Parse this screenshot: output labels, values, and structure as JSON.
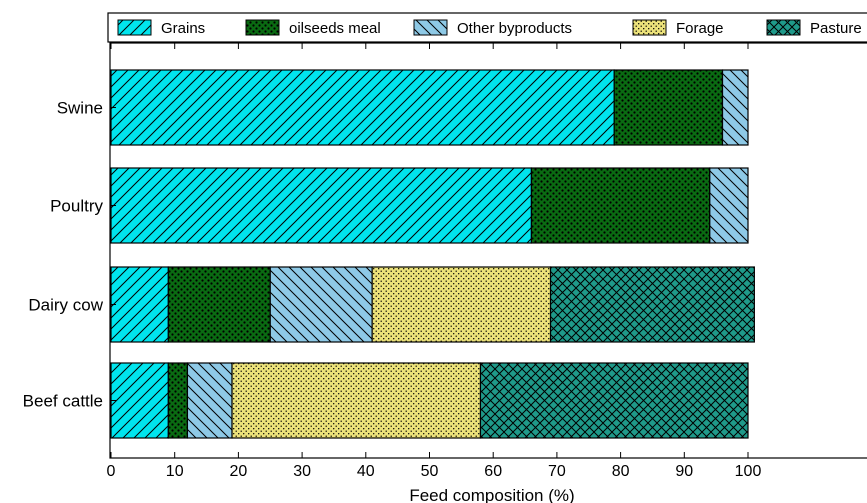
{
  "chart_data": {
    "type": "bar",
    "orientation": "horizontal",
    "stacked": true,
    "categories": [
      "Swine",
      "Poultry",
      "Dairy cow",
      "Beef cattle"
    ],
    "series": [
      {
        "name": "Grains",
        "values": [
          79,
          66,
          9,
          9
        ],
        "color": "#00e5ee",
        "hatch": "diagonal"
      },
      {
        "name": "oilseeds meal",
        "values": [
          17,
          28,
          16,
          3
        ],
        "color": "#0a6b12",
        "hatch": "dots"
      },
      {
        "name": "Other byproducts",
        "values": [
          4,
          6,
          16,
          7
        ],
        "color": "#8ec9e6",
        "hatch": "back-diagonal"
      },
      {
        "name": "Forage",
        "values": [
          0,
          0,
          28,
          39
        ],
        "color": "#ece27a",
        "hatch": "fine-dots"
      },
      {
        "name": "Pasture",
        "values": [
          0,
          0,
          32,
          42
        ],
        "color": "#1f9a8a",
        "hatch": "crosshatch"
      }
    ],
    "xlabel": "Feed composition (%)",
    "ylabel": "",
    "xlim": [
      0,
      110
    ],
    "xticks": [
      "0",
      "10",
      "20",
      "30",
      "40",
      "50",
      "60",
      "70",
      "80",
      "90",
      "100"
    ],
    "grid": false,
    "legend_position": "top"
  }
}
